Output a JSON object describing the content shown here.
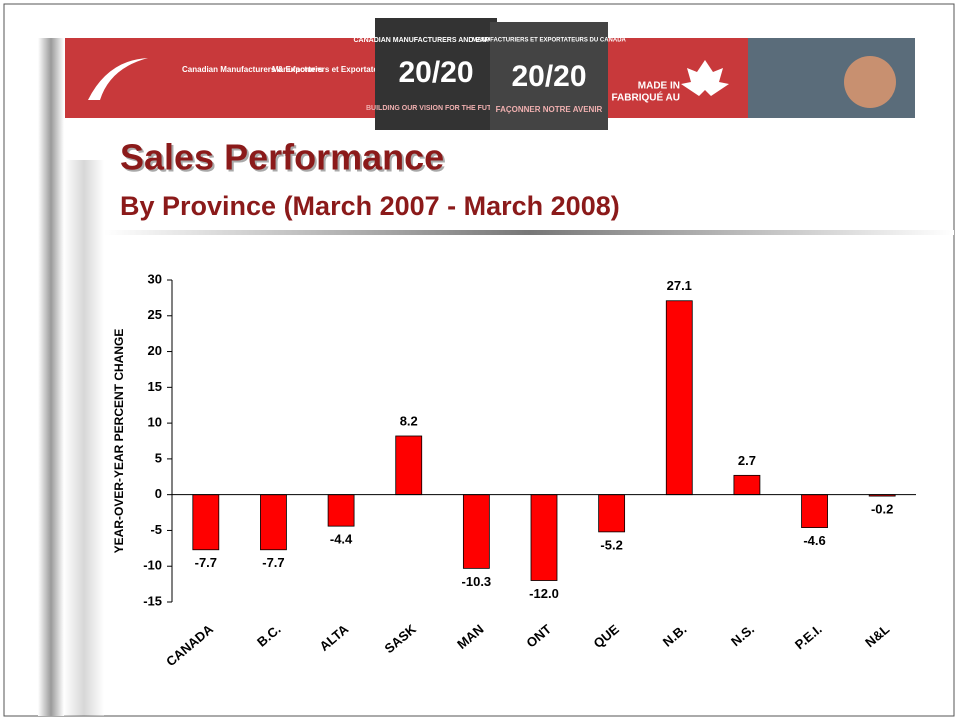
{
  "banner": {
    "org_en": "Canadian Manufacturers & Exporters",
    "org_fr": "Manufacturiers et Exportateurs du Canada",
    "logo_en_top": "CANADIAN MANUFACTURERS AND EXPORTERS",
    "logo_en_num": "20/20",
    "logo_en_bottom": "BUILDING OUR VISION FOR THE FUTURE",
    "logo_fr_top": "MANUFACTURIERS ET EXPORTATEURS DU CANADA",
    "logo_fr_num": "20/20",
    "logo_fr_bottom": "FAÇONNER NOTRE AVENIR",
    "made_in": "MADE IN",
    "fabrique_au": "FABRIQUÉ AU"
  },
  "chart_data": {
    "type": "bar",
    "title": "Sales Performance",
    "subtitle": "By Province (March 2007 - March 2008)",
    "y_label": "YEAR-OVER-YEAR PERCENT CHANGE",
    "categories": [
      "CANADA",
      "B.C.",
      "ALTA",
      "SASK",
      "MAN",
      "ONT",
      "QUE",
      "N.B.",
      "N.S.",
      "P.E.I.",
      "N&L"
    ],
    "values": [
      -7.7,
      -7.7,
      -4.4,
      8.2,
      -10.3,
      -12,
      -5.2,
      27.1,
      2.7,
      -4.6,
      -0.2
    ],
    "value_labels": [
      "-7.7",
      "-7.7",
      "-4.4",
      "8.2",
      "-10.3",
      "-12.0",
      "-5.2",
      "27.1",
      "2.7",
      "-4.6",
      "-0.2"
    ],
    "color": "#ff0000",
    "ylim": [
      -15,
      30
    ],
    "yticks": [
      -15,
      -10,
      -5,
      0,
      5,
      10,
      15,
      20,
      25,
      30
    ],
    "grid": false
  }
}
